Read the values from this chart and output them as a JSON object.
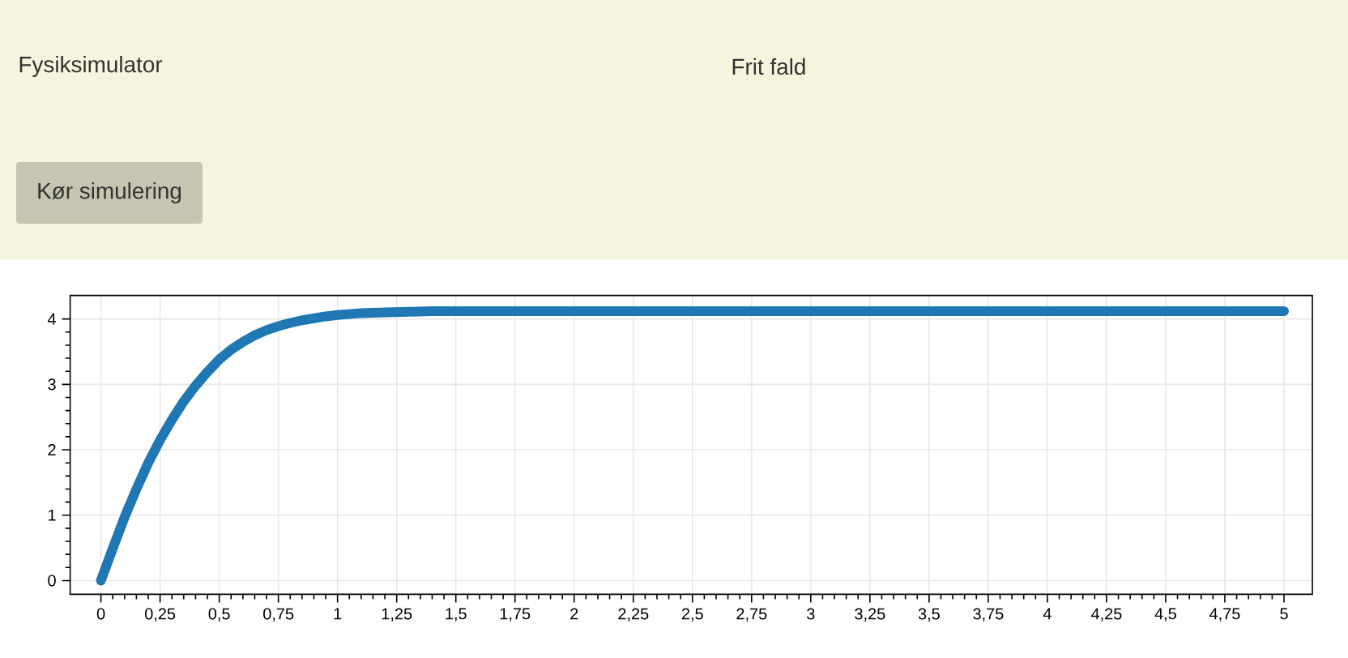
{
  "chart_data": {
    "type": "line",
    "title": "Fysiksimulator",
    "subtitle": "Frit fald",
    "annotations": [
      "Kør simulering"
    ],
    "x": [
      0,
      0.05,
      0.1,
      0.15,
      0.2,
      0.25,
      0.3,
      0.35,
      0.4,
      0.45,
      0.5,
      0.55,
      0.6,
      0.65,
      0.7,
      0.75,
      0.8,
      0.85,
      0.9,
      0.95,
      1.0,
      1.1,
      1.2,
      1.3,
      1.4,
      1.5,
      2,
      2.5,
      3,
      3.5,
      4,
      4.5,
      5
    ],
    "values": [
      0,
      0.49,
      0.97,
      1.4,
      1.8,
      2.15,
      2.46,
      2.74,
      2.98,
      3.19,
      3.38,
      3.53,
      3.65,
      3.75,
      3.83,
      3.89,
      3.94,
      3.98,
      4.01,
      4.04,
      4.06,
      4.09,
      4.1,
      4.11,
      4.12,
      4.12,
      4.12,
      4.12,
      4.12,
      4.12,
      4.12,
      4.12,
      4.12
    ],
    "color": "#1f77b4",
    "xlim": [
      -0.13,
      5.12
    ],
    "ylim": [
      -0.21,
      4.36
    ],
    "xticks": [
      0,
      {
        "value": 0.25,
        "label": "0,25"
      },
      {
        "value": 0.5,
        "label": "0,5"
      },
      {
        "value": 0.75,
        "label": "0,75"
      },
      1,
      {
        "value": 1.25,
        "label": "1,25"
      },
      {
        "value": 1.5,
        "label": "1,5"
      },
      {
        "value": 1.75,
        "label": "1,75"
      },
      2,
      {
        "value": 2.25,
        "label": "2,25"
      },
      {
        "value": 2.5,
        "label": "2,5"
      },
      {
        "value": 2.75,
        "label": "2,75"
      },
      3,
      {
        "value": 3.25,
        "label": "3,25"
      },
      {
        "value": 3.5,
        "label": "3,5"
      },
      {
        "value": 3.75,
        "label": "3,75"
      },
      4,
      {
        "value": 4.25,
        "label": "4,25"
      },
      {
        "value": 4.5,
        "label": "4,5"
      },
      {
        "value": 4.75,
        "label": "4,75"
      },
      5
    ],
    "yticks": [
      0,
      1,
      2,
      3,
      4
    ],
    "grid": true
  }
}
